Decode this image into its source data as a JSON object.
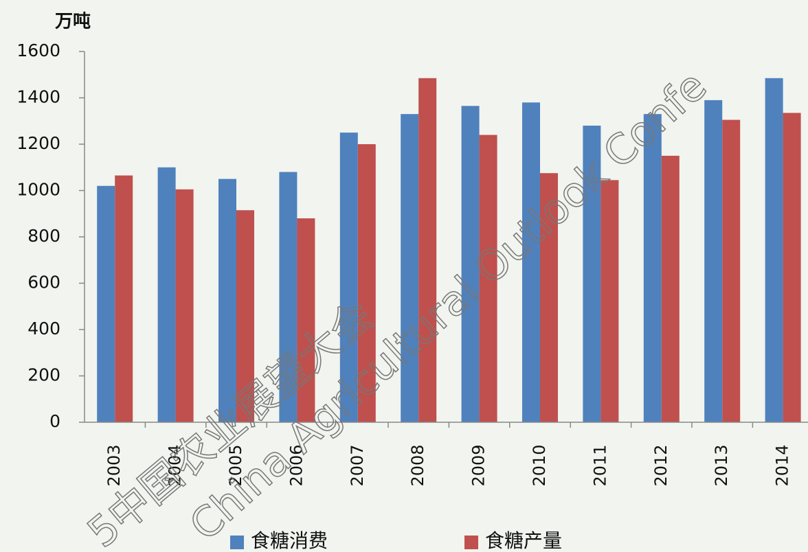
{
  "chart_data": {
    "type": "bar",
    "y_axis_label": "万吨",
    "categories": [
      "2003",
      "2004",
      "2005",
      "2006",
      "2007",
      "2008",
      "2009",
      "2010",
      "2011",
      "2012",
      "2013",
      "2014"
    ],
    "series": [
      {
        "name": "食糖消费",
        "color": "#4f81bd",
        "values": [
          1020,
          1100,
          1050,
          1080,
          1250,
          1330,
          1365,
          1380,
          1280,
          1330,
          1390,
          1485
        ]
      },
      {
        "name": "食糖产量",
        "color": "#c0504d",
        "values": [
          1065,
          1005,
          915,
          880,
          1200,
          1485,
          1240,
          1075,
          1045,
          1150,
          1305,
          1335
        ]
      }
    ],
    "ylim": [
      0,
      1600
    ],
    "yticks": [
      0,
      200,
      400,
      600,
      800,
      1000,
      1200,
      1400,
      1600
    ],
    "grid": false,
    "watermark": [
      "5中国农业展望大会",
      "China Agricultural Outlook Confe"
    ]
  }
}
